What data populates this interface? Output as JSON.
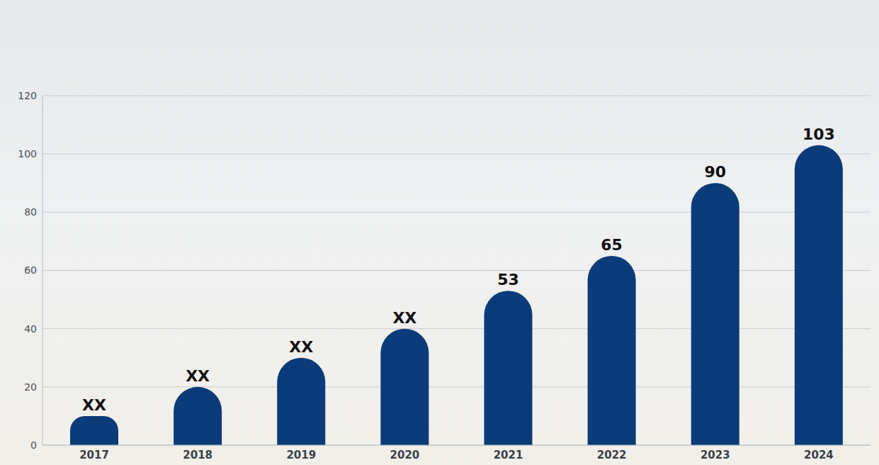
{
  "chart_data": {
    "type": "bar",
    "categories": [
      "2017",
      "2018",
      "2019",
      "2020",
      "2021",
      "2022",
      "2023",
      "2024"
    ],
    "values": [
      10,
      20,
      30,
      40,
      53,
      65,
      90,
      103
    ],
    "value_labels": [
      "XX",
      "XX",
      "XX",
      "XX",
      "53",
      "65",
      "90",
      "103"
    ],
    "color": "#0b3b78",
    "ylim": [
      0,
      120
    ],
    "yticks": [
      0,
      20,
      40,
      60,
      80,
      100,
      120
    ],
    "grid": true,
    "data_labels": true
  }
}
